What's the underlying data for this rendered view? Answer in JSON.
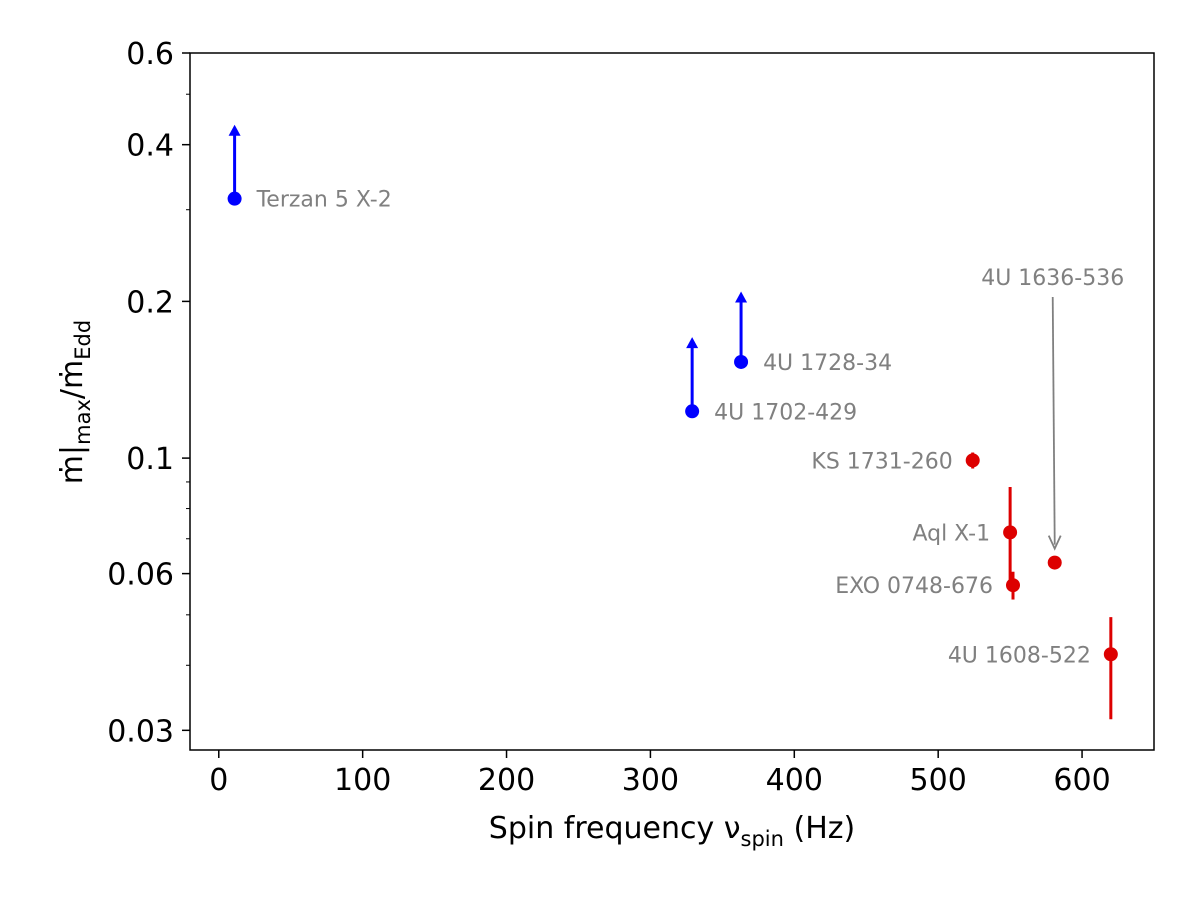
{
  "chart_data": {
    "type": "scatter",
    "title": "",
    "xlabel": "Spin frequency ν",
    "xlabel_sub": "spin",
    "xlabel_suffix": " (Hz)",
    "ylabel_parts": [
      "ṁ|",
      "max",
      "/ṁ",
      "Edd"
    ],
    "x_scale": "linear",
    "y_scale": "log",
    "xlim": [
      -20,
      650
    ],
    "ylim": [
      0.0275,
      0.6
    ],
    "x_ticks": [
      0,
      100,
      200,
      300,
      400,
      500,
      600
    ],
    "y_ticks": [
      0.03,
      0.06,
      0.1,
      0.2,
      0.4,
      0.6
    ],
    "y_tick_labels": [
      "0.03",
      "0.06",
      "0.1",
      "0.2",
      "0.4",
      "0.6"
    ],
    "y_minor_ticks": [
      0.04,
      0.05,
      0.07,
      0.08,
      0.09,
      0.3,
      0.5
    ],
    "grid": false,
    "series": [
      {
        "kind": "lower-limit",
        "color": "#0000ff",
        "points": [
          {
            "label": "Terzan 5 X-2",
            "x": 11,
            "y": 0.315,
            "y_arrow_tip": 0.435
          },
          {
            "label": "4U 1702-429",
            "x": 329,
            "y": 0.123,
            "y_arrow_tip": 0.17
          },
          {
            "label": "4U 1728-34",
            "x": 363,
            "y": 0.153,
            "y_arrow_tip": 0.208
          }
        ]
      },
      {
        "kind": "measurement",
        "color": "#dd0000",
        "points": [
          {
            "label": "KS 1731-260",
            "x": 524,
            "y": 0.099,
            "y_err": [
              0.0955,
              0.1025
            ]
          },
          {
            "label": "Aql X-1",
            "x": 550,
            "y": 0.072,
            "y_err": [
              0.0575,
              0.088
            ]
          },
          {
            "label": "EXO 0748-676",
            "x": 552,
            "y": 0.057,
            "y_err": [
              0.0535,
              0.0605
            ]
          },
          {
            "label": "4U 1636-536",
            "x": 581,
            "y": 0.063,
            "y_err": [
              0.0615,
              0.0645
            ]
          },
          {
            "label": "4U 1608-522",
            "x": 620,
            "y": 0.042,
            "y_err": [
              0.0315,
              0.0495
            ]
          }
        ]
      }
    ],
    "annotations": [
      {
        "label": "4U 1636-536",
        "arrow_color": "#808080",
        "points_to": "4U 1636-536"
      }
    ]
  }
}
